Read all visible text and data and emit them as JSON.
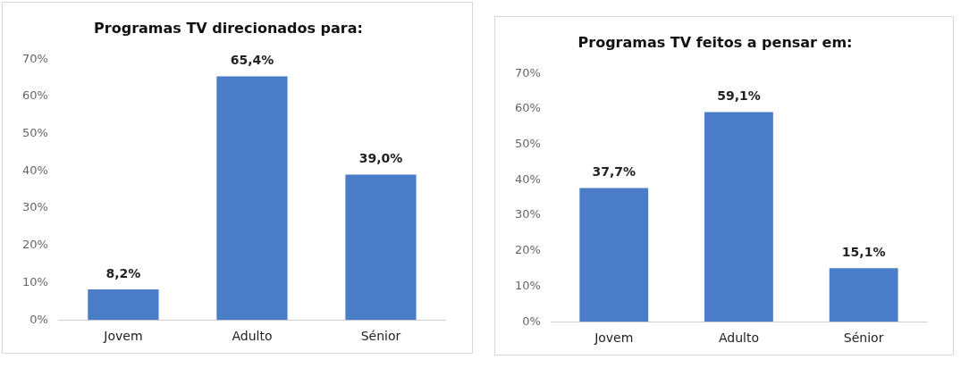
{
  "chart_data": [
    {
      "type": "bar",
      "title": "Programas TV direcionados para:",
      "categories": [
        "Jovem",
        "Adulto",
        "Sénior"
      ],
      "values": [
        8.2,
        65.4,
        39.0
      ],
      "value_labels": [
        "8,2%",
        "65,4%",
        "39,0%"
      ],
      "color": "#4a7cc8",
      "ylim": [
        0,
        70
      ],
      "yticks": [
        {
          "value": 0,
          "label": "0%"
        },
        {
          "value": 10,
          "label": "10%"
        },
        {
          "value": 20,
          "label": "20%"
        },
        {
          "value": 30,
          "label": "30%"
        },
        {
          "value": 40,
          "label": "40%"
        },
        {
          "value": 50,
          "label": "50%"
        },
        {
          "value": 60,
          "label": "60%"
        },
        {
          "value": 70,
          "label": "70%"
        }
      ]
    },
    {
      "type": "bar",
      "title": "Programas TV feitos a pensar em:",
      "categories": [
        "Jovem",
        "Adulto",
        "Sénior"
      ],
      "values": [
        37.7,
        59.1,
        15.1
      ],
      "value_labels": [
        "37,7%",
        "59,1%",
        "15,1%"
      ],
      "color": "#4a7cc8",
      "ylim": [
        0,
        70
      ],
      "yticks": [
        {
          "value": 0,
          "label": "0%"
        },
        {
          "value": 10,
          "label": "10%"
        },
        {
          "value": 20,
          "label": "20%"
        },
        {
          "value": 30,
          "label": "30%"
        },
        {
          "value": 40,
          "label": "40%"
        },
        {
          "value": 50,
          "label": "50%"
        },
        {
          "value": 60,
          "label": "60%"
        },
        {
          "value": 70,
          "label": "70%"
        }
      ]
    }
  ]
}
